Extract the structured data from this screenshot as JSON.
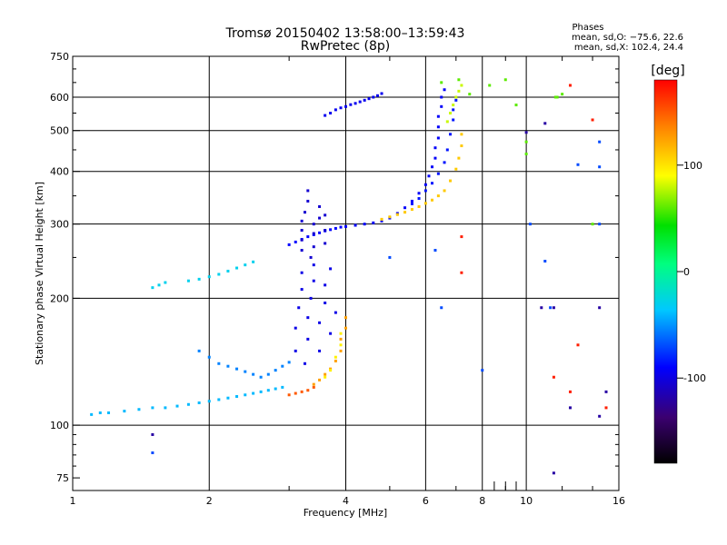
{
  "chart_data": {
    "type": "scatter",
    "title": "Tromsø 20150402 13:58:00–13:59:43",
    "subtitle": "RwPretec (8p)",
    "stats": {
      "heading": "Phases",
      "line_o": "mean, sd,O: −75.6, 22.6",
      "line_x": "mean, sd,X: 102.4, 24.4"
    },
    "xlabel": "Frequency [MHz]",
    "ylabel": "Stationary phase Virtual Height [km]",
    "x_scale": "log",
    "y_scale": "log",
    "xlim": [
      1,
      16
    ],
    "ylim": [
      70,
      750
    ],
    "x_ticks": [
      1,
      2,
      4,
      6,
      8,
      10,
      16
    ],
    "y_ticks": [
      75,
      100,
      200,
      300,
      400,
      500,
      600,
      750
    ],
    "grid": true,
    "colorbar": {
      "label": "[deg]",
      "range": [
        -180,
        180
      ],
      "ticks": [
        100,
        0,
        -100
      ]
    },
    "series": [
      {
        "phase": -95,
        "points": [
          [
            3.6,
            543
          ],
          [
            3.7,
            550
          ],
          [
            3.8,
            560
          ],
          [
            3.9,
            566
          ],
          [
            4.0,
            570
          ],
          [
            4.1,
            576
          ],
          [
            4.2,
            580
          ],
          [
            4.3,
            585
          ],
          [
            4.4,
            590
          ],
          [
            4.5,
            595
          ],
          [
            4.6,
            600
          ],
          [
            4.7,
            605
          ],
          [
            4.8,
            612
          ]
        ]
      },
      {
        "phase": -90,
        "points": [
          [
            3.0,
            268
          ],
          [
            3.1,
            272
          ],
          [
            3.2,
            276
          ],
          [
            3.3,
            280
          ],
          [
            3.4,
            283
          ],
          [
            3.5,
            286
          ],
          [
            3.6,
            289
          ],
          [
            3.7,
            291
          ],
          [
            3.8,
            293
          ],
          [
            3.9,
            295
          ],
          [
            4.0,
            296
          ],
          [
            4.2,
            298
          ],
          [
            4.4,
            300
          ]
        ]
      },
      {
        "phase": -105,
        "points": [
          [
            3.2,
            260
          ],
          [
            3.2,
            275
          ],
          [
            3.2,
            290
          ],
          [
            3.2,
            305
          ],
          [
            3.25,
            320
          ],
          [
            3.3,
            340
          ],
          [
            3.3,
            360
          ],
          [
            3.35,
            250
          ],
          [
            3.4,
            265
          ],
          [
            3.4,
            285
          ],
          [
            3.4,
            300
          ],
          [
            3.5,
            310
          ],
          [
            3.5,
            330
          ],
          [
            3.6,
            270
          ],
          [
            3.6,
            290
          ],
          [
            3.6,
            315
          ]
        ]
      },
      {
        "phase": -98,
        "points": [
          [
            3.1,
            150
          ],
          [
            3.1,
            170
          ],
          [
            3.15,
            190
          ],
          [
            3.2,
            210
          ],
          [
            3.2,
            230
          ],
          [
            3.25,
            140
          ],
          [
            3.3,
            160
          ],
          [
            3.3,
            180
          ],
          [
            3.35,
            200
          ],
          [
            3.4,
            220
          ],
          [
            3.4,
            240
          ],
          [
            3.5,
            150
          ],
          [
            3.5,
            175
          ],
          [
            3.6,
            195
          ],
          [
            3.6,
            215
          ],
          [
            3.7,
            235
          ],
          [
            3.7,
            165
          ],
          [
            3.8,
            185
          ]
        ]
      },
      {
        "phase": -92,
        "points": [
          [
            4.6,
            302
          ],
          [
            4.8,
            305
          ],
          [
            5.0,
            310
          ],
          [
            5.2,
            318
          ],
          [
            5.4,
            328
          ],
          [
            5.6,
            340
          ],
          [
            5.8,
            355
          ],
          [
            6.0,
            372
          ],
          [
            6.1,
            390
          ],
          [
            6.2,
            410
          ],
          [
            6.3,
            430
          ],
          [
            6.3,
            455
          ],
          [
            6.4,
            480
          ],
          [
            6.4,
            510
          ],
          [
            6.4,
            540
          ],
          [
            6.5,
            570
          ],
          [
            6.5,
            600
          ],
          [
            6.6,
            625
          ]
        ]
      },
      {
        "phase": -85,
        "points": [
          [
            5.6,
            335
          ],
          [
            5.8,
            345
          ],
          [
            6.0,
            360
          ],
          [
            6.2,
            375
          ],
          [
            6.4,
            395
          ],
          [
            6.6,
            420
          ],
          [
            6.7,
            450
          ],
          [
            6.8,
            490
          ],
          [
            6.9,
            530
          ],
          [
            6.9,
            560
          ],
          [
            7.0,
            590
          ]
        ]
      },
      {
        "phase": 110,
        "points": [
          [
            4.8,
            308
          ],
          [
            5.0,
            312
          ],
          [
            5.2,
            316
          ],
          [
            5.4,
            320
          ],
          [
            5.6,
            325
          ],
          [
            5.8,
            330
          ],
          [
            6.0,
            336
          ],
          [
            6.2,
            342
          ],
          [
            6.4,
            350
          ],
          [
            6.6,
            360
          ],
          [
            6.8,
            380
          ],
          [
            7.0,
            405
          ],
          [
            7.1,
            430
          ],
          [
            7.2,
            460
          ],
          [
            7.2,
            490
          ]
        ]
      },
      {
        "phase": 80,
        "points": [
          [
            6.7,
            525
          ],
          [
            6.8,
            550
          ],
          [
            6.9,
            575
          ],
          [
            7.0,
            600
          ],
          [
            7.1,
            620
          ],
          [
            7.2,
            640
          ]
        ]
      },
      {
        "phase": -40,
        "points": [
          [
            1.1,
            106
          ],
          [
            1.15,
            107
          ],
          [
            1.2,
            107
          ],
          [
            1.3,
            108
          ],
          [
            1.4,
            109
          ],
          [
            1.5,
            110
          ],
          [
            1.6,
            110
          ],
          [
            1.7,
            111
          ],
          [
            1.8,
            112
          ],
          [
            1.9,
            113
          ],
          [
            2.0,
            114
          ],
          [
            2.1,
            115
          ],
          [
            2.2,
            116
          ],
          [
            2.3,
            117
          ],
          [
            2.4,
            118
          ],
          [
            2.5,
            119
          ],
          [
            2.6,
            120
          ],
          [
            2.7,
            121
          ],
          [
            2.8,
            122
          ],
          [
            2.9,
            123
          ]
        ]
      },
      {
        "phase": -30,
        "points": [
          [
            1.5,
            212
          ],
          [
            1.55,
            215
          ],
          [
            1.6,
            218
          ],
          [
            1.8,
            220
          ],
          [
            1.9,
            222
          ],
          [
            2.0,
            225
          ],
          [
            2.1,
            228
          ],
          [
            2.2,
            232
          ],
          [
            2.3,
            236
          ],
          [
            2.4,
            240
          ],
          [
            2.5,
            244
          ]
        ]
      },
      {
        "phase": -55,
        "points": [
          [
            1.9,
            150
          ],
          [
            2.0,
            145
          ],
          [
            2.1,
            140
          ],
          [
            2.2,
            138
          ],
          [
            2.3,
            136
          ],
          [
            2.4,
            134
          ],
          [
            2.5,
            132
          ],
          [
            2.6,
            130
          ],
          [
            2.7,
            132
          ],
          [
            2.8,
            135
          ],
          [
            2.9,
            138
          ],
          [
            3.0,
            141
          ]
        ]
      },
      {
        "phase": 150,
        "points": [
          [
            3.0,
            118
          ],
          [
            3.1,
            119
          ],
          [
            3.2,
            120
          ],
          [
            3.3,
            121
          ],
          [
            3.4,
            123
          ]
        ]
      },
      {
        "phase": 125,
        "points": [
          [
            3.4,
            125
          ],
          [
            3.5,
            128
          ],
          [
            3.6,
            132
          ],
          [
            3.7,
            136
          ],
          [
            3.8,
            142
          ],
          [
            3.9,
            150
          ],
          [
            3.9,
            160
          ],
          [
            4.0,
            170
          ],
          [
            4.0,
            180
          ]
        ]
      },
      {
        "phase": 95,
        "points": [
          [
            3.6,
            130
          ],
          [
            3.7,
            135
          ],
          [
            3.8,
            145
          ],
          [
            3.9,
            155
          ],
          [
            3.9,
            165
          ]
        ]
      },
      {
        "phase": 60,
        "points": [
          [
            6.5,
            650
          ],
          [
            7.1,
            660
          ],
          [
            7.5,
            610
          ],
          [
            8.3,
            640
          ],
          [
            9.0,
            660
          ],
          [
            9.5,
            575
          ],
          [
            10.0,
            470
          ],
          [
            10.0,
            440
          ],
          [
            11.6,
            600
          ],
          [
            11.7,
            600
          ],
          [
            12.0,
            610
          ],
          [
            14.0,
            300
          ]
        ]
      },
      {
        "phase": 170,
        "points": [
          [
            12.5,
            640
          ],
          [
            14.0,
            530
          ],
          [
            7.2,
            230
          ],
          [
            7.2,
            280
          ],
          [
            11.5,
            130
          ],
          [
            12.5,
            120
          ],
          [
            13.0,
            155
          ],
          [
            15.0,
            110
          ]
        ]
      },
      {
        "phase": -120,
        "points": [
          [
            1.5,
            95
          ],
          [
            10.8,
            190
          ],
          [
            11.0,
            520
          ],
          [
            11.5,
            190
          ],
          [
            12.5,
            110
          ],
          [
            14.5,
            105
          ],
          [
            15.0,
            120
          ],
          [
            11.5,
            77
          ],
          [
            14.5,
            190
          ],
          [
            10.0,
            495
          ]
        ]
      },
      {
        "phase": -70,
        "points": [
          [
            1.5,
            86
          ],
          [
            8.0,
            135
          ],
          [
            10.2,
            300
          ],
          [
            11.0,
            245
          ],
          [
            14.5,
            410
          ],
          [
            14.5,
            300
          ],
          [
            14.5,
            470
          ],
          [
            13.0,
            415
          ],
          [
            11.3,
            190
          ],
          [
            6.5,
            190
          ],
          [
            6.3,
            260
          ],
          [
            5.0,
            250
          ]
        ]
      }
    ]
  }
}
